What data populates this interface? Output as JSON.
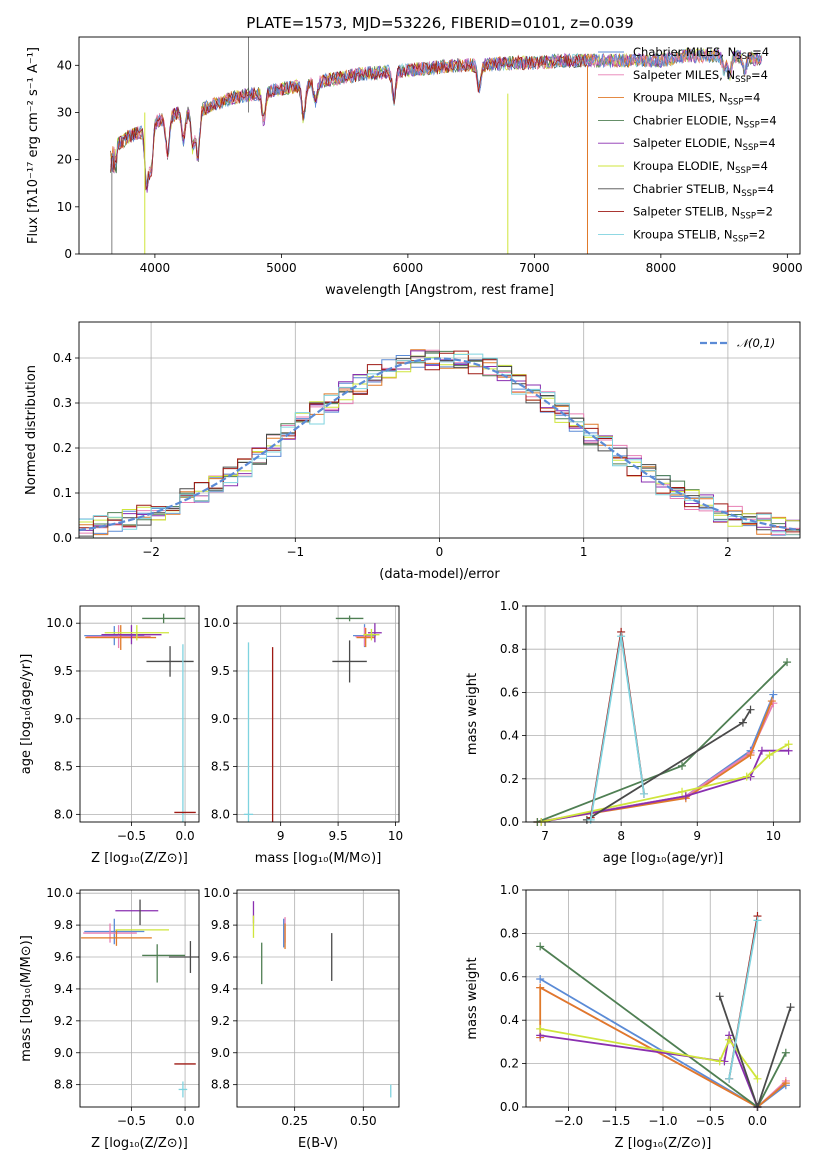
{
  "figure": {
    "title": "PLATE=1573, MJD=53226, FIBERID=0101, z=0.039"
  },
  "chart_data": [
    {
      "id": "spectrum",
      "type": "line",
      "title": "PLATE=1573, MJD=53226, FIBERID=0101, z=0.039",
      "xlabel": "wavelength [Angstrom, rest frame]",
      "ylabel": "Flux [fλ10⁻¹⁷ erg cm⁻² s⁻¹ A⁻¹]",
      "xlim": [
        3400,
        9100
      ],
      "ylim": [
        0,
        46
      ],
      "xticks": [
        4000,
        5000,
        6000,
        7000,
        8000,
        9000
      ],
      "yticks": [
        0,
        10,
        20,
        30,
        40
      ],
      "grid": false,
      "legend_position": "top-right",
      "continuum_x": [
        3650,
        3700,
        3800,
        3900,
        4000,
        4200,
        4400,
        4600,
        4800,
        5000,
        5200,
        5400,
        5600,
        5800,
        6000,
        6200,
        6400,
        6600,
        6800,
        7000,
        7200,
        7400,
        7600,
        7800,
        8000,
        8200,
        8400,
        8600,
        8800
      ],
      "continuum_y": [
        22,
        23,
        25,
        26,
        28,
        30,
        31,
        33,
        34,
        35,
        36,
        37,
        38,
        38.5,
        39,
        39.5,
        40,
        40,
        40.5,
        40.5,
        41,
        41,
        41,
        41,
        41,
        42,
        42,
        42,
        41
      ],
      "series": [
        {
          "name": "Chabrier MILES, N",
          "sub": "SSP",
          "suffix": "=4",
          "color": "#5b8bd6"
        },
        {
          "name": "Salpeter MILES, N",
          "sub": "SSP",
          "suffix": "=4",
          "color": "#e87fb4"
        },
        {
          "name": "Kroupa MILES, N",
          "sub": "SSP",
          "suffix": "=4",
          "color": "#e07a2a"
        },
        {
          "name": "Chabrier ELODIE, N",
          "sub": "SSP",
          "suffix": "=4",
          "color": "#4f7f53"
        },
        {
          "name": "Salpeter ELODIE, N",
          "sub": "SSP",
          "suffix": "=4",
          "color": "#8a2fb0"
        },
        {
          "name": "Kroupa ELODIE, N",
          "sub": "SSP",
          "suffix": "=4",
          "color": "#cfe53b"
        },
        {
          "name": "Chabrier STELIB, N",
          "sub": "SSP",
          "suffix": "=4",
          "color": "#4a4a4a"
        },
        {
          "name": "Salpeter STELIB, N",
          "sub": "SSP",
          "suffix": "=2",
          "color": "#9e1a14"
        },
        {
          "name": "Kroupa STELIB, N",
          "sub": "SSP",
          "suffix": "=2",
          "color": "#7fd3df"
        }
      ]
    },
    {
      "id": "residuals",
      "type": "step",
      "xlabel": "(data-model)/error",
      "ylabel": "Normed distribution",
      "xlim": [
        -2.5,
        2.5
      ],
      "ylim": [
        0,
        0.48
      ],
      "xticks": [
        -2,
        -1,
        0,
        1,
        2
      ],
      "yticks": [
        0.0,
        0.1,
        0.2,
        0.3,
        0.4
      ],
      "grid": true,
      "legend_position": "top-right",
      "reference_curve": {
        "name": "𝒩(0,1)",
        "color": "#5b8bd6"
      },
      "bin_width": 0.1
    },
    {
      "id": "age_vs_Z",
      "type": "errorbar",
      "xlabel": "Z [log₁₀(Z/Z⊙)]",
      "ylabel": "age  [log₁₀(age/yr)]",
      "xlim": [
        -0.98,
        0.13
      ],
      "ylim": [
        7.92,
        10.18
      ],
      "xticks": [
        -0.5,
        0.0
      ],
      "yticks": [
        8.0,
        8.5,
        9.0,
        9.5,
        10.0
      ],
      "grid": true,
      "points": [
        {
          "c": 3,
          "x": -0.2,
          "y": 10.05,
          "ex": 0.2,
          "ey": 0.05
        },
        {
          "c": 0,
          "x": -0.66,
          "y": 9.87,
          "ex": 0.28,
          "ey": 0.1
        },
        {
          "c": 1,
          "x": -0.62,
          "y": 9.86,
          "ex": 0.3,
          "ey": 0.12
        },
        {
          "c": 2,
          "x": -0.6,
          "y": 9.85,
          "ex": 0.33,
          "ey": 0.13
        },
        {
          "c": 4,
          "x": -0.5,
          "y": 9.88,
          "ex": 0.28,
          "ey": 0.1
        },
        {
          "c": 5,
          "x": -0.45,
          "y": 9.9,
          "ex": 0.3,
          "ey": 0.08
        },
        {
          "c": 6,
          "x": -0.14,
          "y": 9.6,
          "ex": 0.22,
          "ey": 0.16
        },
        {
          "c": 8,
          "x": -0.02,
          "y": 8.0,
          "ex": 0.01,
          "ey": 1.78
        },
        {
          "c": 7,
          "x": 0.0,
          "y": 8.02,
          "ex": 0.1,
          "ey": 0.0
        }
      ]
    },
    {
      "id": "age_vs_mass",
      "type": "errorbar",
      "xlabel": "mass [log₁₀(M/M⊙)]",
      "ylabel": "",
      "xlim": [
        8.62,
        10.03
      ],
      "ylim": [
        7.92,
        10.18
      ],
      "xticks": [
        9,
        9.5,
        10
      ],
      "yticks": [
        8.0,
        8.5,
        9.0,
        9.5,
        10.0
      ],
      "grid": true,
      "points": [
        {
          "c": 3,
          "x": 9.6,
          "y": 10.05,
          "ex": 0.12,
          "ey": 0.03
        },
        {
          "c": 0,
          "x": 9.73,
          "y": 9.87,
          "ex": 0.1,
          "ey": 0.12
        },
        {
          "c": 1,
          "x": 9.73,
          "y": 9.86,
          "ex": 0.08,
          "ey": 0.1
        },
        {
          "c": 2,
          "x": 9.74,
          "y": 9.85,
          "ex": 0.08,
          "ey": 0.1
        },
        {
          "c": 4,
          "x": 9.82,
          "y": 9.9,
          "ex": 0.06,
          "ey": 0.1
        },
        {
          "c": 5,
          "x": 9.79,
          "y": 9.88,
          "ex": 0.07,
          "ey": 0.06
        },
        {
          "c": 6,
          "x": 9.6,
          "y": 9.6,
          "ex": 0.15,
          "ey": 0.22
        },
        {
          "c": 8,
          "x": 8.72,
          "y": 8.0,
          "ex": 0.04,
          "ey": 1.8
        },
        {
          "c": 7,
          "x": 8.93,
          "y": 8.0,
          "ex": 0.0,
          "ey": 1.75
        }
      ]
    },
    {
      "id": "mass_weight_vs_age",
      "type": "line",
      "xlabel": "age  [log₁₀(age/yr)]",
      "ylabel": "mass weight",
      "xlim": [
        6.75,
        10.35
      ],
      "ylim": [
        0,
        1
      ],
      "xticks": [
        7,
        8,
        9,
        10
      ],
      "yticks": [
        0.0,
        0.2,
        0.4,
        0.6,
        0.8,
        1.0
      ],
      "grid": true,
      "series": [
        {
          "c": 0,
          "x": [
            6.9,
            8.85,
            9.7,
            10.0
          ],
          "y": [
            0.0,
            0.12,
            0.33,
            0.59
          ]
        },
        {
          "c": 1,
          "x": [
            6.9,
            8.85,
            9.7,
            10.0
          ],
          "y": [
            0.0,
            0.12,
            0.32,
            0.55
          ]
        },
        {
          "c": 2,
          "x": [
            6.9,
            8.85,
            9.7,
            9.98
          ],
          "y": [
            0.0,
            0.11,
            0.31,
            0.56
          ]
        },
        {
          "c": 3,
          "x": [
            6.9,
            8.8,
            10.18
          ],
          "y": [
            0.0,
            0.26,
            0.74
          ]
        },
        {
          "c": 4,
          "x": [
            6.95,
            8.85,
            9.7,
            9.85,
            10.2
          ],
          "y": [
            0.0,
            0.12,
            0.21,
            0.33,
            0.33
          ]
        },
        {
          "c": 5,
          "x": [
            6.95,
            8.8,
            9.65,
            9.95,
            10.2
          ],
          "y": [
            0.0,
            0.14,
            0.21,
            0.31,
            0.36
          ]
        },
        {
          "c": 6,
          "x": [
            7.55,
            9.6,
            9.7
          ],
          "y": [
            0.01,
            0.46,
            0.52
          ]
        },
        {
          "c": 7,
          "x": [
            7.6,
            8.0,
            8.3
          ],
          "y": [
            0.02,
            0.88,
            0.13
          ]
        },
        {
          "c": 8,
          "x": [
            7.6,
            8.0,
            8.3
          ],
          "y": [
            0.01,
            0.86,
            0.13
          ]
        }
      ]
    },
    {
      "id": "mass_vs_Z",
      "type": "errorbar",
      "xlabel": "Z [log₁₀(Z/Z⊙)]",
      "ylabel": "mass [log₁₀(M/M⊙)]",
      "xlim": [
        -0.98,
        0.13
      ],
      "ylim": [
        8.66,
        10.02
      ],
      "xticks": [
        -0.5,
        0.0
      ],
      "yticks": [
        8.8,
        9.0,
        9.2,
        9.4,
        9.6,
        9.8,
        10.0
      ],
      "grid": true,
      "points": [
        {
          "c": 0,
          "x": -0.66,
          "y": 9.76,
          "ex": 0.28,
          "ey": 0.08
        },
        {
          "c": 1,
          "x": -0.7,
          "y": 9.75,
          "ex": 0.25,
          "ey": 0.06
        },
        {
          "c": 2,
          "x": -0.64,
          "y": 9.72,
          "ex": 0.33,
          "ey": 0.05
        },
        {
          "c": 4,
          "x": -0.45,
          "y": 9.89,
          "ex": 0.2,
          "ey": 0.0
        },
        {
          "c": 5,
          "x": -0.4,
          "y": 9.77,
          "ex": 0.25,
          "ey": 0.0
        },
        {
          "c": 6,
          "x": -0.42,
          "y": 9.88,
          "ex": 0.0,
          "ey": 0.08
        },
        {
          "c": 3,
          "x": -0.2,
          "y": 9.61,
          "ex": 0.2,
          "ey": 0.0
        },
        {
          "c": 3,
          "x": -0.26,
          "y": 9.56,
          "ex": 0.0,
          "ey": 0.12
        },
        {
          "c": 6,
          "x": 0.05,
          "y": 9.6,
          "ex": 0.2,
          "ey": 0.1
        },
        {
          "c": 7,
          "x": 0.0,
          "y": 8.93,
          "ex": 0.1,
          "ey": 0.0
        },
        {
          "c": 8,
          "x": -0.02,
          "y": 8.77,
          "ex": 0.04,
          "ey": 0.05
        }
      ]
    },
    {
      "id": "mass_vs_EBV",
      "type": "errorbar",
      "xlabel": "E(B-V)",
      "ylabel": "",
      "xlim": [
        0.04,
        0.63
      ],
      "ylim": [
        8.66,
        10.02
      ],
      "xticks": [
        0.25,
        0.5
      ],
      "yticks": [
        8.8,
        9.0,
        9.2,
        9.4,
        9.6,
        9.8,
        10.0
      ],
      "grid": true,
      "points": [
        {
          "c": 4,
          "x": 0.1,
          "y": 9.88,
          "ex": 0.0,
          "ey": 0.07
        },
        {
          "c": 5,
          "x": 0.1,
          "y": 9.79,
          "ex": 0.0,
          "ey": 0.07
        },
        {
          "c": 3,
          "x": 0.13,
          "y": 9.56,
          "ex": 0.0,
          "ey": 0.13
        },
        {
          "c": 0,
          "x": 0.21,
          "y": 9.75,
          "ex": 0.0,
          "ey": 0.09
        },
        {
          "c": 1,
          "x": 0.215,
          "y": 9.77,
          "ex": 0.0,
          "ey": 0.08
        },
        {
          "c": 2,
          "x": 0.215,
          "y": 9.73,
          "ex": 0.0,
          "ey": 0.08
        },
        {
          "c": 6,
          "x": 0.385,
          "y": 9.6,
          "ex": 0.0,
          "ey": 0.15
        },
        {
          "c": 8,
          "x": 0.6,
          "y": 8.76,
          "ex": 0.0,
          "ey": 0.04
        }
      ]
    },
    {
      "id": "mass_weight_vs_Z",
      "type": "line",
      "xlabel": "Z [log₁₀(Z/Z⊙)]",
      "ylabel": "mass weight",
      "xlim": [
        -2.45,
        0.45
      ],
      "ylim": [
        0,
        1
      ],
      "xticks": [
        -2.0,
        -1.5,
        -1.0,
        -0.5,
        0.0
      ],
      "yticks": [
        0.0,
        0.2,
        0.4,
        0.6,
        0.8,
        1.0
      ],
      "grid": true,
      "series": [
        {
          "c": 0,
          "x": [
            -2.3,
            0.0,
            0.3
          ],
          "y": [
            0.59,
            0.0,
            0.1
          ]
        },
        {
          "c": 1,
          "x": [
            -2.3,
            0.0,
            0.3
          ],
          "y": [
            0.55,
            0.0,
            0.12
          ]
        },
        {
          "c": 2,
          "x": [
            -2.3,
            -2.3,
            0.0,
            0.3
          ],
          "y": [
            0.32,
            0.55,
            0.0,
            0.11
          ]
        },
        {
          "c": 3,
          "x": [
            -2.3,
            0.0,
            0.3
          ],
          "y": [
            0.74,
            0.0,
            0.25
          ]
        },
        {
          "c": 4,
          "x": [
            -2.3,
            -0.35,
            -0.3,
            0.0
          ],
          "y": [
            0.33,
            0.21,
            0.33,
            0.0
          ]
        },
        {
          "c": 5,
          "x": [
            -2.3,
            -0.4,
            -0.3,
            0.0
          ],
          "y": [
            0.36,
            0.21,
            0.31,
            0.13
          ]
        },
        {
          "c": 6,
          "x": [
            -0.4,
            0.0,
            0.35
          ],
          "y": [
            0.51,
            0.0,
            0.46
          ]
        },
        {
          "c": 7,
          "x": [
            -0.3,
            0.0
          ],
          "y": [
            0.13,
            0.88
          ]
        },
        {
          "c": 8,
          "x": [
            -0.3,
            0.0
          ],
          "y": [
            0.13,
            0.86
          ]
        }
      ]
    }
  ]
}
